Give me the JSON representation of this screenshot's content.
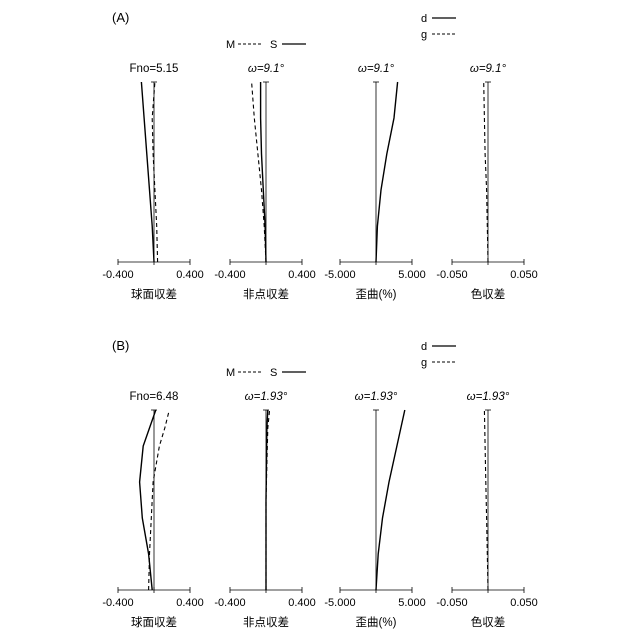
{
  "panels": [
    {
      "label": "(A)",
      "legend_ms": {
        "m": "M",
        "s": "S"
      },
      "legend_dg": {
        "d": "d",
        "g": "g"
      },
      "charts": [
        {
          "title": "Fno=5.15",
          "ticks": [
            "-0.400",
            "0.400"
          ],
          "xlabel": "球面収差"
        },
        {
          "title": "ω=9.1°",
          "ticks": [
            "-0.400",
            "0.400"
          ],
          "xlabel": "非点収差"
        },
        {
          "title": "ω=9.1°",
          "ticks": [
            "-5.000",
            "5.000"
          ],
          "xlabel": "歪曲(%)"
        },
        {
          "title": "ω=9.1°",
          "ticks": [
            "-0.050",
            "0.050"
          ],
          "xlabel": "色収差"
        }
      ]
    },
    {
      "label": "(B)",
      "legend_ms": {
        "m": "M",
        "s": "S"
      },
      "legend_dg": {
        "d": "d",
        "g": "g"
      },
      "charts": [
        {
          "title": "Fno=6.48",
          "ticks": [
            "-0.400",
            "0.400"
          ],
          "xlabel": "球面収差"
        },
        {
          "title": "ω=1.93°",
          "ticks": [
            "-0.400",
            "0.400"
          ],
          "xlabel": "非点収差"
        },
        {
          "title": "ω=1.93°",
          "ticks": [
            "-5.000",
            "5.000"
          ],
          "xlabel": "歪曲(%)"
        },
        {
          "title": "ω=1.93°",
          "ticks": [
            "-0.050",
            "0.050"
          ],
          "xlabel": "色収差"
        }
      ]
    }
  ],
  "chart_data": [
    {
      "type": "line",
      "panel": "(A)",
      "title": "Fno=5.15",
      "xlabel": "球面収差",
      "xlim": [
        -0.4,
        0.4
      ],
      "series": [
        {
          "name": "d",
          "style": "solid",
          "y": [
            0,
            0.2,
            0.4,
            0.6,
            0.8,
            1.0
          ],
          "x": [
            0,
            -0.02,
            -0.05,
            -0.08,
            -0.11,
            -0.14
          ]
        },
        {
          "name": "g",
          "style": "dashed",
          "y": [
            0,
            0.2,
            0.4,
            0.6,
            0.8,
            1.0
          ],
          "x": [
            0.04,
            0.03,
            0.01,
            -0.01,
            -0.02,
            0.01
          ]
        }
      ]
    },
    {
      "type": "line",
      "panel": "(A)",
      "title": "ω=9.1°",
      "xlabel": "非点収差",
      "xlim": [
        -0.4,
        0.4
      ],
      "series": [
        {
          "name": "S",
          "style": "solid",
          "y": [
            0,
            0.2,
            0.4,
            0.6,
            0.8,
            1.0
          ],
          "x": [
            0,
            -0.01,
            -0.03,
            -0.05,
            -0.06,
            -0.06
          ]
        },
        {
          "name": "M",
          "style": "dashed",
          "y": [
            0,
            0.2,
            0.4,
            0.6,
            0.8,
            1.0
          ],
          "x": [
            0,
            -0.02,
            -0.05,
            -0.09,
            -0.13,
            -0.16
          ]
        }
      ]
    },
    {
      "type": "line",
      "panel": "(A)",
      "title": "ω=9.1°",
      "xlabel": "歪曲(%)",
      "xlim": [
        -5,
        5
      ],
      "series": [
        {
          "name": "distortion",
          "style": "solid",
          "y": [
            0,
            0.2,
            0.4,
            0.6,
            0.8,
            1.0
          ],
          "x": [
            0,
            0.2,
            0.7,
            1.5,
            2.5,
            3.0
          ]
        }
      ]
    },
    {
      "type": "line",
      "panel": "(A)",
      "title": "ω=9.1°",
      "xlabel": "色収差",
      "xlim": [
        -0.05,
        0.05
      ],
      "series": [
        {
          "name": "g",
          "style": "dashed",
          "y": [
            0,
            0.2,
            0.4,
            0.6,
            0.8,
            1.0
          ],
          "x": [
            0,
            -0.001,
            -0.002,
            -0.004,
            -0.005,
            -0.006
          ]
        }
      ]
    },
    {
      "type": "line",
      "panel": "(B)",
      "title": "Fno=6.48",
      "xlabel": "球面収差",
      "xlim": [
        -0.4,
        0.4
      ],
      "series": [
        {
          "name": "d",
          "style": "solid",
          "y": [
            0,
            0.2,
            0.4,
            0.6,
            0.8,
            0.9,
            1.0
          ],
          "x": [
            -0.02,
            -0.06,
            -0.13,
            -0.16,
            -0.12,
            -0.05,
            0.02
          ]
        },
        {
          "name": "g",
          "style": "dashed",
          "y": [
            0,
            0.2,
            0.4,
            0.6,
            0.8,
            0.9,
            1.0
          ],
          "x": [
            -0.06,
            -0.05,
            -0.03,
            -0.01,
            0.06,
            0.12,
            0.17
          ]
        }
      ]
    },
    {
      "type": "line",
      "panel": "(B)",
      "title": "ω=1.93°",
      "xlabel": "非点収差",
      "xlim": [
        -0.4,
        0.4
      ],
      "series": [
        {
          "name": "S",
          "style": "solid",
          "y": [
            0,
            0.5,
            0.9,
            1.0
          ],
          "x": [
            0,
            0,
            0.01,
            0.02
          ]
        },
        {
          "name": "M",
          "style": "dashed",
          "y": [
            0,
            0.5,
            0.9,
            1.0
          ],
          "x": [
            0,
            0,
            0.02,
            0.04
          ]
        }
      ]
    },
    {
      "type": "line",
      "panel": "(B)",
      "title": "ω=1.93°",
      "xlabel": "歪曲(%)",
      "xlim": [
        -5,
        5
      ],
      "series": [
        {
          "name": "distortion",
          "style": "solid",
          "y": [
            0,
            0.2,
            0.4,
            0.6,
            0.8,
            1.0
          ],
          "x": [
            0,
            0.3,
            0.9,
            1.8,
            2.9,
            4.0
          ]
        }
      ]
    },
    {
      "type": "line",
      "panel": "(B)",
      "title": "ω=1.93°",
      "xlabel": "色収差",
      "xlim": [
        -0.05,
        0.05
      ],
      "series": [
        {
          "name": "g",
          "style": "dashed",
          "y": [
            0,
            0.2,
            0.4,
            0.6,
            0.8,
            1.0
          ],
          "x": [
            0,
            -0.001,
            -0.002,
            -0.003,
            -0.004,
            -0.005
          ]
        }
      ]
    }
  ]
}
